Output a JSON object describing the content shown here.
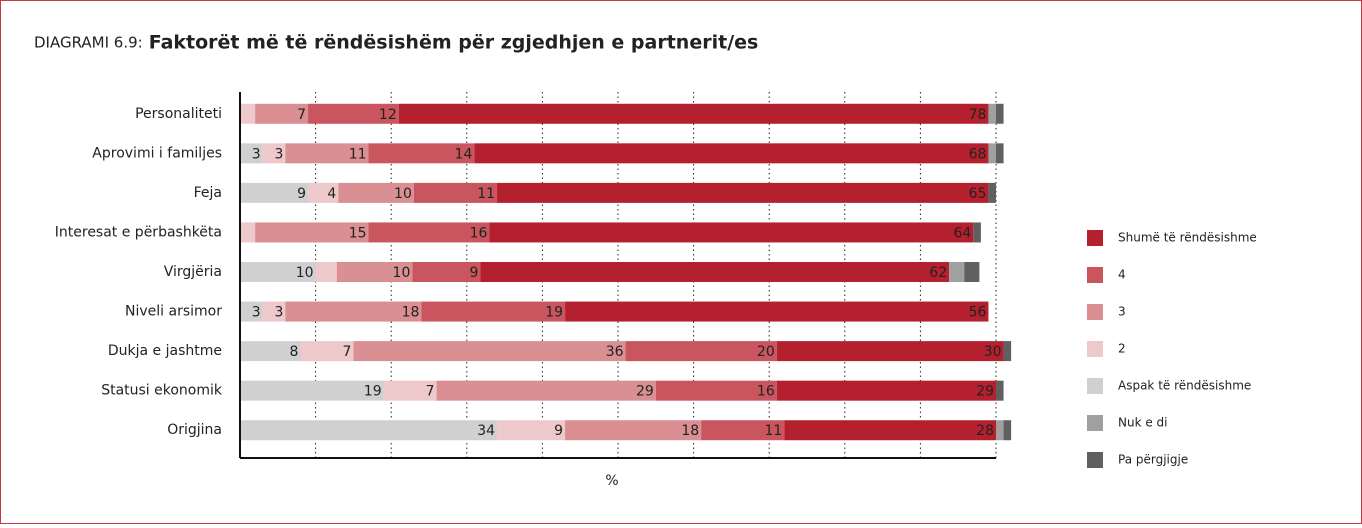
{
  "chart_data": {
    "type": "stacked_bar_horizontal",
    "title_prefix": "DIAGRAMI 6.9:",
    "title": "Faktorët më të rëndësishëm për zgjedhjen e partnerit/es",
    "xlabel": "%",
    "categories": [
      "Personaliteti",
      "Aprovimi i familjes",
      "Feja",
      "Interesat e përbashkëta",
      "Virgjëria",
      "Niveli arsimor",
      "Dukja e jashtme",
      "Statusi ekonomik",
      "Origjina"
    ],
    "series": [
      {
        "name": "Aspak të rëndësishme",
        "color": "#d0d0d0",
        "values": [
          0,
          3,
          9,
          0,
          10,
          3,
          8,
          19,
          34
        ]
      },
      {
        "name": "2",
        "color": "#eec9cb",
        "values": [
          2,
          3,
          4,
          2,
          2.8,
          3,
          7,
          7,
          9
        ]
      },
      {
        "name": "3",
        "color": "#da8f93",
        "values": [
          7,
          11,
          10,
          15,
          10,
          18,
          36,
          29,
          18
        ]
      },
      {
        "name": "4",
        "color": "#c9565e",
        "values": [
          12,
          14,
          11,
          16,
          9,
          19,
          20,
          16,
          11
        ]
      },
      {
        "name": "Shumë të rëndësishme",
        "color": "#b5202e",
        "values": [
          78,
          68,
          65,
          64,
          62,
          56,
          30,
          29,
          28
        ]
      },
      {
        "name": "Nuk e di",
        "color": "#a0a0a0",
        "values": [
          1,
          1,
          0,
          0,
          2,
          0,
          0,
          0,
          1
        ]
      },
      {
        "name": "Pa përgjigje",
        "color": "#606060",
        "values": [
          1,
          1,
          1,
          1,
          2,
          0,
          1,
          1,
          1
        ]
      }
    ],
    "legend_order": [
      4,
      3,
      2,
      1,
      0,
      5,
      6
    ],
    "legend": "right",
    "xlim": [
      0,
      100
    ],
    "xticks": [
      10,
      20,
      30,
      40,
      50,
      60,
      70,
      80,
      90,
      100
    ],
    "grid": true
  }
}
